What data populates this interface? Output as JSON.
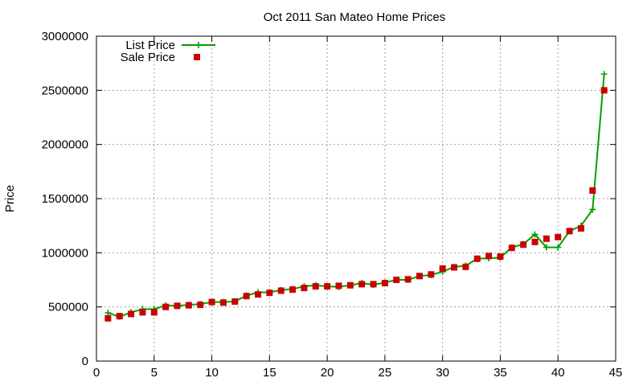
{
  "chart_data": {
    "type": "scatter",
    "title": "Oct 2011 San Mateo Home Prices",
    "xlabel": "",
    "ylabel": "Price",
    "xlim": [
      0,
      45
    ],
    "ylim": [
      0,
      3000000
    ],
    "xticks": [
      0,
      5,
      10,
      15,
      20,
      25,
      30,
      35,
      40,
      45
    ],
    "yticks": [
      0,
      500000,
      1000000,
      1500000,
      2000000,
      2500000,
      3000000
    ],
    "grid": true,
    "legend_position": "top-left",
    "x": [
      1,
      2,
      3,
      4,
      5,
      6,
      7,
      8,
      9,
      10,
      11,
      12,
      13,
      14,
      15,
      16,
      17,
      18,
      19,
      20,
      21,
      22,
      23,
      24,
      25,
      26,
      27,
      28,
      29,
      30,
      31,
      32,
      33,
      34,
      35,
      36,
      37,
      38,
      39,
      40,
      41,
      42,
      43,
      44
    ],
    "series": [
      {
        "name": "List Price",
        "style": "line-plus",
        "color": "#00a000",
        "values": [
          445000,
          410000,
          450000,
          480000,
          480000,
          515000,
          510000,
          520000,
          525000,
          545000,
          545000,
          550000,
          605000,
          635000,
          635000,
          655000,
          665000,
          690000,
          700000,
          690000,
          685000,
          700000,
          720000,
          705000,
          725000,
          750000,
          750000,
          785000,
          795000,
          825000,
          870000,
          880000,
          945000,
          950000,
          955000,
          1050000,
          1080000,
          1170000,
          1050000,
          1050000,
          1200000,
          1250000,
          1400000,
          2650000
        ]
      },
      {
        "name": "Sale Price",
        "style": "square",
        "color": "#cc0000",
        "values": [
          395000,
          415000,
          435000,
          450000,
          450000,
          500000,
          510000,
          515000,
          520000,
          545000,
          540000,
          550000,
          600000,
          615000,
          630000,
          650000,
          660000,
          675000,
          690000,
          690000,
          695000,
          700000,
          710000,
          710000,
          720000,
          750000,
          755000,
          785000,
          800000,
          855000,
          865000,
          870000,
          945000,
          970000,
          965000,
          1045000,
          1075000,
          1100000,
          1130000,
          1145000,
          1200000,
          1225000,
          1575000,
          2500000
        ]
      }
    ]
  }
}
